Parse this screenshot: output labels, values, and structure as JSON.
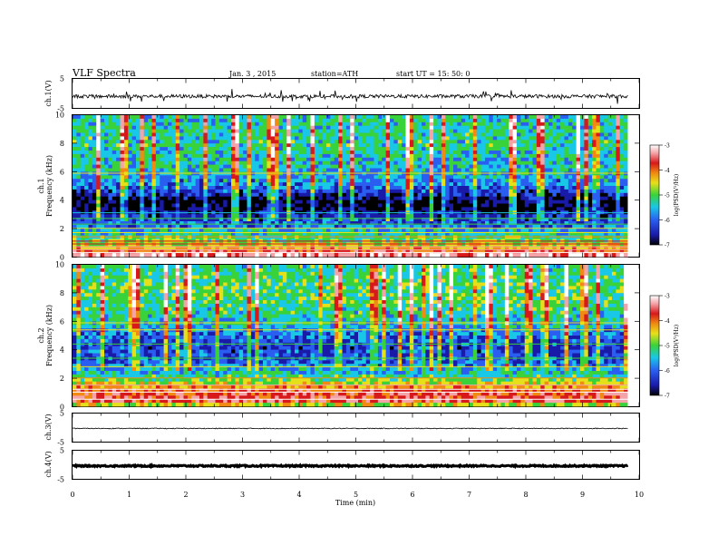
{
  "header": {
    "title": "VLF Spectra",
    "date": "Jan. 3 , 2015",
    "station": "station=ATH",
    "start": "start UT = 15: 50: 0"
  },
  "colors": {
    "axis": "#000000",
    "background": "#ffffff",
    "colormap": [
      "#000000",
      "#1a1aa8",
      "#2a5ef0",
      "#19c7e6",
      "#39d23a",
      "#e6e01a",
      "#f08a12",
      "#d7191c",
      "#f4a3a8",
      "#ffffff"
    ]
  },
  "chart_data": [
    {
      "type": "line",
      "panel": "ch1-waveform",
      "ylabel": "ch.1(V)",
      "yticks": [
        "5",
        "-5"
      ],
      "ylim": [
        -5,
        5
      ],
      "xlim": [
        0,
        10
      ],
      "series": [
        {
          "mean": -1.0,
          "noise_amplitude": 0.6,
          "spike_amplitude": 2.0,
          "duration_min": 9.8
        }
      ]
    },
    {
      "type": "heatmap",
      "panel": "ch1-spectrogram",
      "ylabel": "ch.1\nFrequency (kHz)",
      "yticks": [
        "0",
        "2",
        "4",
        "6",
        "8",
        "10"
      ],
      "ylim": [
        0,
        10
      ],
      "xlim": [
        0,
        10
      ],
      "colorbar": {
        "label": "log(PSD(V²/Hz)",
        "ticks": [
          "-3",
          "-4",
          "-5",
          "-6",
          "-7"
        ],
        "range": [
          -7,
          -3
        ]
      },
      "profile_khz": [
        0,
        0.5,
        1.0,
        2.0,
        3.0,
        3.5,
        4.0,
        5.0,
        6.0,
        8.0,
        10.0
      ],
      "profile_log_psd": [
        -3.3,
        -4.4,
        -5.0,
        -5.8,
        -6.4,
        -6.8,
        -6.7,
        -5.9,
        -5.6,
        -5.4,
        -5.5
      ],
      "lines_khz": [
        0.3,
        0.5,
        0.7,
        0.9,
        1.1,
        1.4,
        1.7,
        2.0,
        2.3,
        2.7,
        3.1,
        5.9
      ]
    },
    {
      "type": "heatmap",
      "panel": "ch2-spectrogram",
      "ylabel": "ch.2\nFrequency (kHz)",
      "yticks": [
        "0",
        "2",
        "4",
        "6",
        "8",
        "10"
      ],
      "ylim": [
        0,
        10
      ],
      "xlim": [
        0,
        10
      ],
      "colorbar": {
        "label": "log(PSD(V²/Hz)",
        "ticks": [
          "-3",
          "-4",
          "-5",
          "-6",
          "-7"
        ],
        "range": [
          -7,
          -3
        ]
      },
      "profile_khz": [
        0,
        0.3,
        1.0,
        1.5,
        2.0,
        3.0,
        4.0,
        5.0,
        6.0,
        8.0,
        10.0
      ],
      "profile_log_psd": [
        -5.5,
        -3.9,
        -4.0,
        -4.6,
        -5.3,
        -6.0,
        -6.2,
        -6.0,
        -5.5,
        -5.2,
        -5.4
      ],
      "lines_khz": [
        0.5,
        1.0,
        1.2,
        1.5,
        2.0,
        2.8,
        3.4,
        4.4,
        5.4,
        5.9
      ]
    },
    {
      "type": "line",
      "panel": "ch3-waveform",
      "ylabel": "ch.3(V)",
      "yticks": [
        "5",
        "-5"
      ],
      "ylim": [
        -5,
        5
      ],
      "xlim": [
        0,
        10
      ],
      "series": [
        {
          "mean": -0.3,
          "noise_amplitude": 0.15,
          "spike_amplitude": 0.0,
          "duration_min": 9.8
        }
      ]
    },
    {
      "type": "line",
      "panel": "ch4-waveform",
      "ylabel": "ch.4(V)",
      "yticks": [
        "5",
        "-5"
      ],
      "ylim": [
        -5,
        5
      ],
      "xlim": [
        0,
        10
      ],
      "series": [
        {
          "mean": -0.4,
          "noise_amplitude": 0.25,
          "spike_amplitude": 0.0,
          "duration_min": 9.8
        }
      ]
    }
  ],
  "xaxis": {
    "label": "Time (min)",
    "ticks": [
      "0",
      "1",
      "2",
      "3",
      "4",
      "5",
      "6",
      "7",
      "8",
      "9",
      "10"
    ],
    "range": [
      0,
      10
    ]
  }
}
